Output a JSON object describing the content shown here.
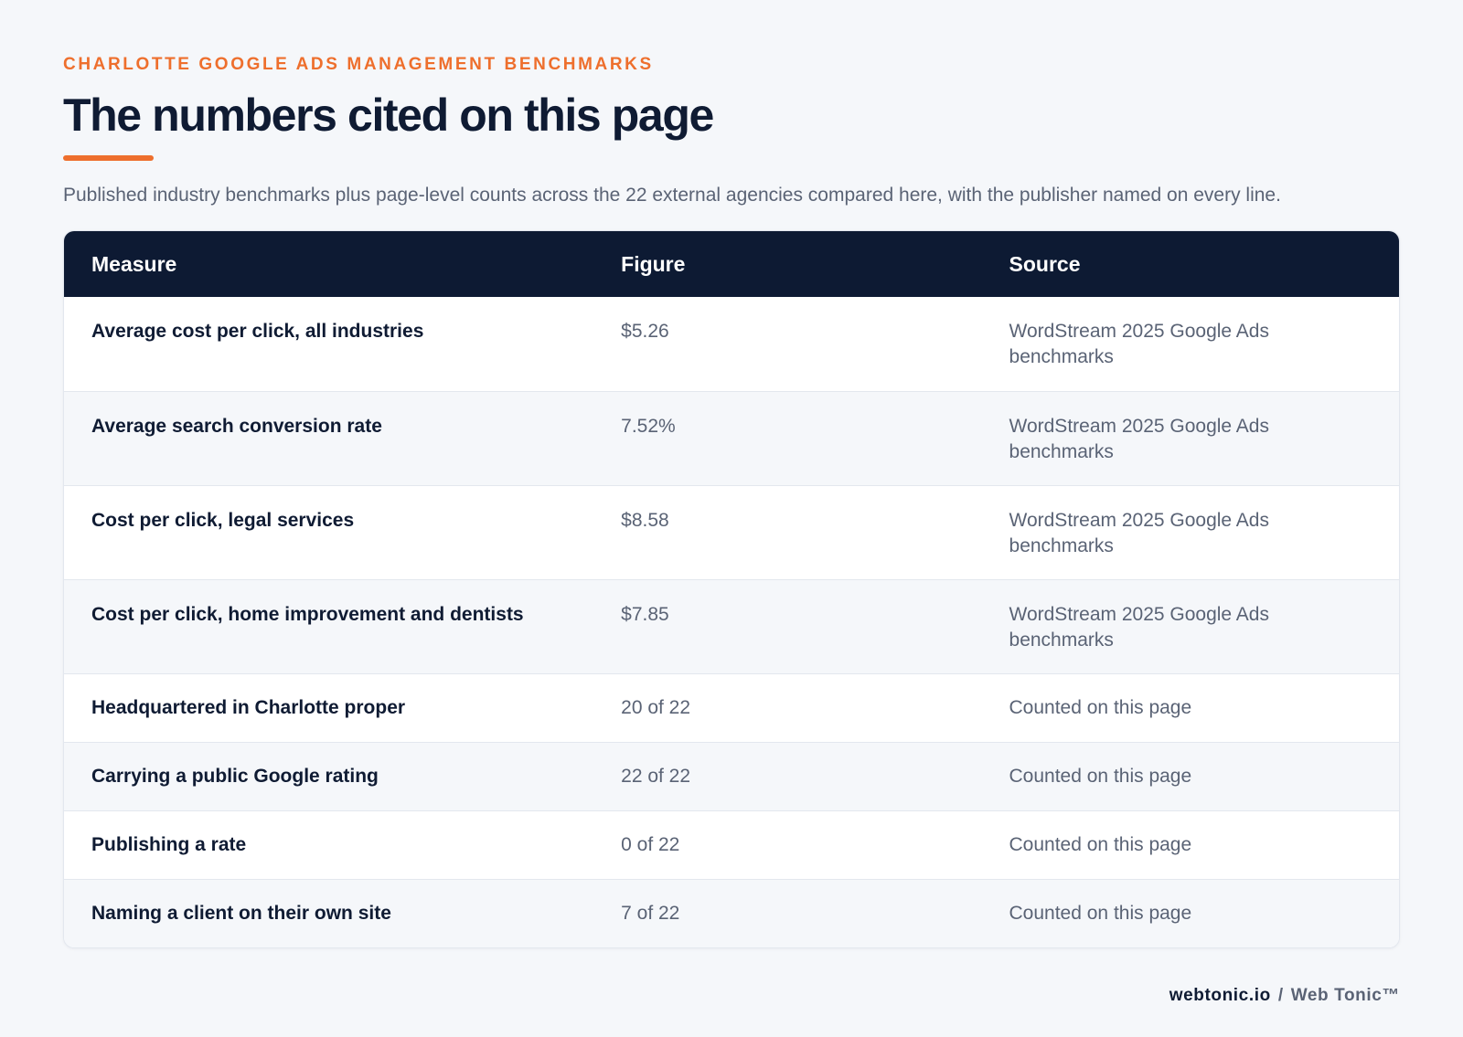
{
  "header": {
    "eyebrow": "CHARLOTTE GOOGLE ADS MANAGEMENT BENCHMARKS",
    "title": "The numbers cited on this page",
    "subtitle": "Published industry benchmarks plus page-level counts across the 22 external agencies compared here, with the publisher named on every line."
  },
  "table": {
    "columns": [
      "Measure",
      "Figure",
      "Source"
    ],
    "rows": [
      {
        "measure": "Average cost per click, all industries",
        "figure": "$5.26",
        "source": "WordStream 2025 Google Ads benchmarks"
      },
      {
        "measure": "Average search conversion rate",
        "figure": "7.52%",
        "source": "WordStream 2025 Google Ads benchmarks"
      },
      {
        "measure": "Cost per click, legal services",
        "figure": "$8.58",
        "source": "WordStream 2025 Google Ads benchmarks"
      },
      {
        "measure": "Cost per click, home improvement and dentists",
        "figure": "$7.85",
        "source": "WordStream 2025 Google Ads benchmarks"
      },
      {
        "measure": "Headquartered in Charlotte proper",
        "figure": "20 of 22",
        "source": "Counted on this page"
      },
      {
        "measure": "Carrying a public Google rating",
        "figure": "22 of 22",
        "source": "Counted on this page"
      },
      {
        "measure": "Publishing a rate",
        "figure": "0 of 22",
        "source": "Counted on this page"
      },
      {
        "measure": "Naming a client on their own site",
        "figure": "7 of 22",
        "source": "Counted on this page"
      }
    ]
  },
  "footer": {
    "domain": "webtonic.io",
    "separator": "/",
    "brand": "Web Tonic™"
  },
  "colors": {
    "accent": "#ee6f2d",
    "header_bg": "#0d1a33",
    "text_dark": "#0f1b33",
    "text_muted": "#5a6375",
    "page_bg": "#f5f7fa"
  }
}
